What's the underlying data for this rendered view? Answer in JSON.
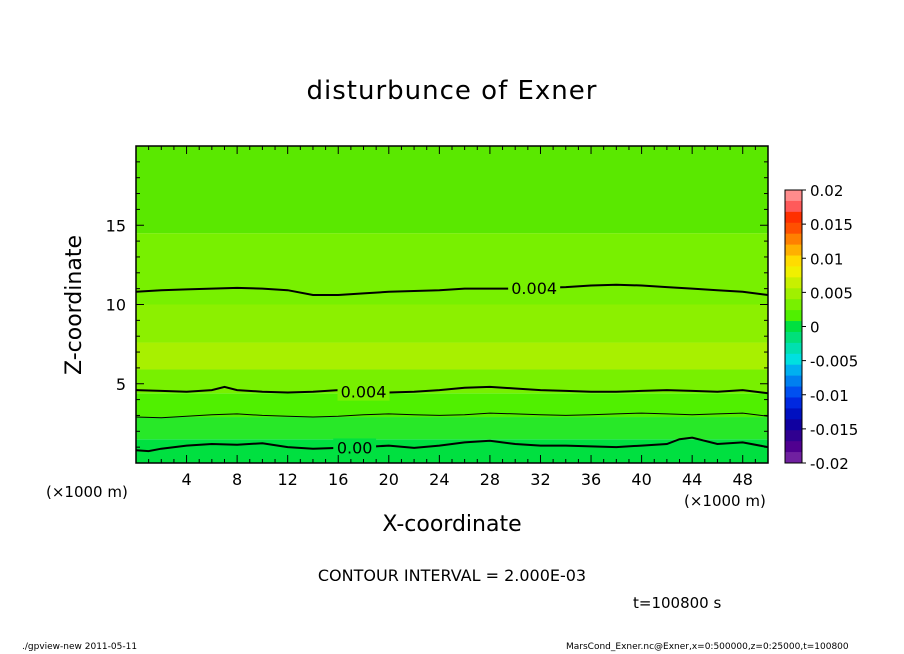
{
  "chart_data": {
    "type": "heatmap",
    "title": "disturbunce of Exner",
    "xlabel": "X-coordinate",
    "ylabel": "Z-coordinate",
    "x_unit_left": "(×1000 m)",
    "x_unit_right": "(×1000 m)",
    "xlim": [
      0,
      50
    ],
    "ylim": [
      0,
      20
    ],
    "x_ticks": [
      4,
      8,
      12,
      16,
      20,
      24,
      28,
      32,
      36,
      40,
      44,
      48
    ],
    "y_ticks": [
      5,
      10,
      15
    ],
    "colorbar": {
      "ticks": [
        "0.02",
        "0.015",
        "0.01",
        "0.005",
        "0",
        "-0.005",
        "-0.01",
        "-0.015",
        "-0.02"
      ],
      "range": [
        -0.02,
        0.02
      ],
      "levels": [
        {
          "value": 0.0175,
          "color": "#ff8c8c"
        },
        {
          "value": 0.0165,
          "color": "#ff5a5a"
        },
        {
          "value": 0.015,
          "color": "#ff3000"
        },
        {
          "value": 0.0135,
          "color": "#ff5000"
        },
        {
          "value": 0.012,
          "color": "#ff8000"
        },
        {
          "value": 0.0105,
          "color": "#ffb000"
        },
        {
          "value": 0.009,
          "color": "#ffdc00"
        },
        {
          "value": 0.0075,
          "color": "#f0f000"
        },
        {
          "value": 0.006,
          "color": "#c8f000"
        },
        {
          "value": 0.0045,
          "color": "#a0f000"
        },
        {
          "value": 0.003,
          "color": "#78f000"
        },
        {
          "value": 0.0015,
          "color": "#50f000"
        },
        {
          "value": 0.0,
          "color": "#00e040"
        },
        {
          "value": -0.0015,
          "color": "#00e07a"
        },
        {
          "value": -0.003,
          "color": "#00e0b0"
        },
        {
          "value": -0.0045,
          "color": "#00e0e0"
        },
        {
          "value": -0.006,
          "color": "#00b0f0"
        },
        {
          "value": -0.0075,
          "color": "#0080f0"
        },
        {
          "value": -0.009,
          "color": "#0050f0"
        },
        {
          "value": -0.0105,
          "color": "#0028e0"
        },
        {
          "value": -0.012,
          "color": "#0010c0"
        },
        {
          "value": -0.0135,
          "color": "#1000a0"
        },
        {
          "value": -0.015,
          "color": "#300090"
        },
        {
          "value": -0.0165,
          "color": "#500090"
        },
        {
          "value": -0.018,
          "color": "#7020a0"
        }
      ]
    },
    "field_bands": [
      {
        "z_from": 0.0,
        "z_to": 1.5,
        "color": "#00e040"
      },
      {
        "z_from": 1.5,
        "z_to": 2.9,
        "color": "#28e828"
      },
      {
        "z_from": 2.9,
        "z_to": 4.4,
        "color": "#50f000"
      },
      {
        "z_from": 4.4,
        "z_to": 5.9,
        "color": "#78f000"
      },
      {
        "z_from": 5.9,
        "z_to": 7.6,
        "color": "#a8f000"
      },
      {
        "z_from": 7.6,
        "z_to": 10.0,
        "color": "#8cf000"
      },
      {
        "z_from": 10.0,
        "z_to": 14.5,
        "color": "#78f000"
      },
      {
        "z_from": 14.5,
        "z_to": 20.0,
        "color": "#5ae800"
      }
    ],
    "contours": [
      {
        "level": "0.004",
        "label": "0.004",
        "label_x": 31.5,
        "weight": "thick",
        "x": [
          0,
          2,
          4,
          6,
          8,
          10,
          12,
          14,
          16,
          18,
          20,
          22,
          24,
          26,
          28,
          30,
          32,
          34,
          36,
          38,
          40,
          42,
          44,
          46,
          48,
          50
        ],
        "z": [
          10.8,
          10.9,
          10.95,
          11.0,
          11.05,
          11.0,
          10.9,
          10.6,
          10.6,
          10.7,
          10.8,
          10.85,
          10.9,
          11.0,
          11.0,
          11.0,
          11.05,
          11.1,
          11.2,
          11.25,
          11.2,
          11.1,
          11.0,
          10.9,
          10.8,
          10.6
        ]
      },
      {
        "level": "0.004",
        "label": "0.004",
        "label_x": 18.0,
        "weight": "thick",
        "x": [
          0,
          2,
          4,
          6,
          7,
          8,
          10,
          12,
          14,
          16,
          18,
          20,
          22,
          24,
          26,
          28,
          30,
          32,
          34,
          36,
          38,
          40,
          42,
          44,
          46,
          48,
          50
        ],
        "z": [
          4.6,
          4.55,
          4.5,
          4.6,
          4.8,
          4.6,
          4.5,
          4.45,
          4.5,
          4.6,
          4.5,
          4.45,
          4.5,
          4.6,
          4.75,
          4.8,
          4.7,
          4.6,
          4.55,
          4.5,
          4.5,
          4.55,
          4.6,
          4.55,
          4.5,
          4.6,
          4.4
        ]
      },
      {
        "level": "0.002",
        "label": "",
        "label_x": null,
        "weight": "thin",
        "x": [
          0,
          2,
          4,
          6,
          8,
          10,
          12,
          14,
          16,
          18,
          20,
          22,
          24,
          26,
          28,
          30,
          32,
          34,
          36,
          38,
          40,
          42,
          44,
          46,
          48,
          50
        ],
        "z": [
          2.9,
          2.85,
          2.95,
          3.05,
          3.1,
          3.0,
          2.95,
          2.9,
          2.95,
          3.05,
          3.1,
          3.05,
          3.0,
          3.05,
          3.15,
          3.1,
          3.05,
          3.0,
          3.05,
          3.1,
          3.15,
          3.1,
          3.05,
          3.1,
          3.15,
          2.95
        ]
      },
      {
        "level": "0.00",
        "label": "0.00",
        "label_x": 17.3,
        "weight": "thick",
        "x": [
          0,
          1,
          2,
          4,
          6,
          8,
          10,
          12,
          14,
          16,
          18,
          20,
          22,
          24,
          26,
          28,
          30,
          32,
          34,
          36,
          38,
          40,
          42,
          43,
          44,
          46,
          48,
          50
        ],
        "z": [
          0.8,
          0.75,
          0.9,
          1.1,
          1.2,
          1.15,
          1.25,
          1.0,
          0.9,
          0.95,
          1.0,
          1.1,
          0.95,
          1.1,
          1.3,
          1.4,
          1.2,
          1.1,
          1.1,
          1.05,
          1.0,
          1.1,
          1.2,
          1.5,
          1.6,
          1.2,
          1.3,
          1.0
        ]
      }
    ],
    "grid": false,
    "legend": "right"
  },
  "contour_interval": "CONTOUR INTERVAL = 2.000E-03",
  "time_label": "t=100800 s",
  "footer_left": "./gpview-new  2011-05-11",
  "footer_right": "MarsCond_Exner.nc@Exner,x=0:500000,z=0:25000,t=100800"
}
